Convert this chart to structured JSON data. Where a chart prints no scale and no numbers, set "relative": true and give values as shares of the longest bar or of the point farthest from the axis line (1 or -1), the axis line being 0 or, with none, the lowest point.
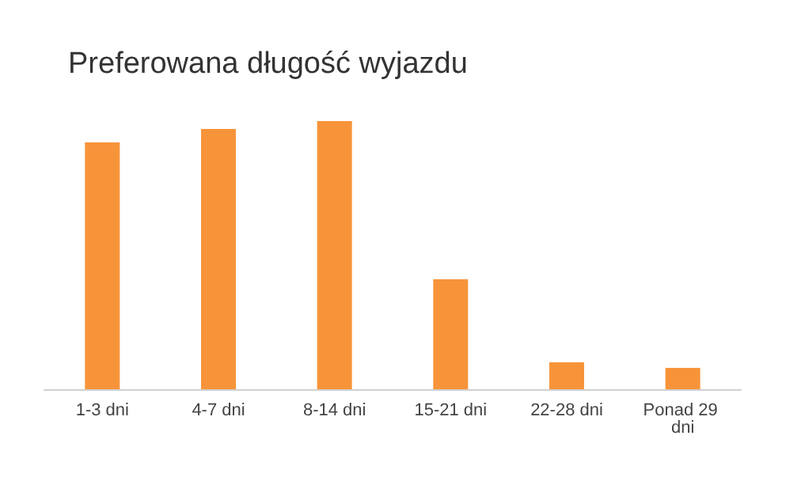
{
  "chart_data": {
    "type": "bar",
    "title": "Preferowana długość wyjazdu",
    "categories": [
      "1-3 dni",
      "4-7 dni",
      "8-14 dni",
      "15-21 dni",
      "22-28 dni",
      "Ponad 29 dni"
    ],
    "values": [
      0.92,
      0.97,
      1,
      0.41,
      0.1,
      0.08
    ],
    "color": "#f7943a",
    "relative": true
  }
}
